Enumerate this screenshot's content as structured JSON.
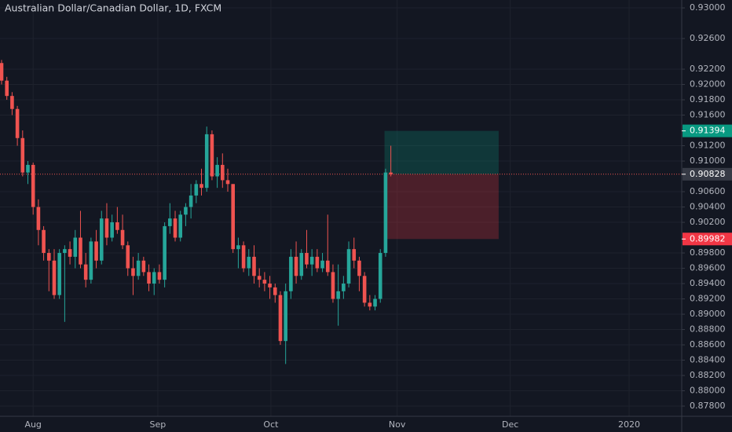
{
  "chart_data": {
    "type": "candlestick",
    "title": "Australian Dollar/Canadian Dollar, 1D, FXCM",
    "x": [
      0,
      1,
      2,
      3,
      4,
      5,
      6,
      7,
      8,
      9,
      10,
      11,
      12,
      13,
      14,
      15,
      16,
      17,
      18,
      19,
      20,
      21,
      22,
      23,
      24,
      25,
      26,
      27,
      28,
      29,
      30,
      31,
      32,
      33,
      34,
      35,
      36,
      37,
      38,
      39,
      40,
      41,
      42,
      43,
      44,
      45,
      46,
      47,
      48,
      49,
      50,
      51,
      52,
      53,
      54,
      55,
      56,
      57,
      58,
      59,
      60,
      61,
      62,
      63,
      64,
      65,
      66,
      67,
      68,
      69,
      70,
      71,
      72,
      73,
      74
    ],
    "open": [
      0.9228,
      0.9205,
      0.9185,
      0.9168,
      0.913,
      0.9085,
      0.9095,
      0.904,
      0.901,
      0.898,
      0.897,
      0.8925,
      0.898,
      0.8985,
      0.8975,
      0.9,
      0.8965,
      0.8945,
      0.8995,
      0.897,
      0.9025,
      0.9,
      0.902,
      0.901,
      0.899,
      0.896,
      0.895,
      0.897,
      0.8955,
      0.894,
      0.8955,
      0.8945,
      0.9015,
      0.9025,
      0.9,
      0.903,
      0.904,
      0.9055,
      0.907,
      0.9065,
      0.9135,
      0.908,
      0.9095,
      0.9075,
      0.907,
      0.8985,
      0.899,
      0.896,
      0.8975,
      0.895,
      0.8945,
      0.894,
      0.8935,
      0.8925,
      0.8865,
      0.893,
      0.8975,
      0.895,
      0.898,
      0.8965,
      0.8975,
      0.896,
      0.897,
      0.8955,
      0.892,
      0.893,
      0.894,
      0.8985,
      0.897,
      0.895,
      0.8915,
      0.891,
      0.892,
      0.898,
      0.9085
    ],
    "high": [
      0.9232,
      0.921,
      0.919,
      0.9172,
      0.914,
      0.91,
      0.9098,
      0.905,
      0.9015,
      0.8985,
      0.8985,
      0.8985,
      0.899,
      0.8995,
      0.901,
      0.9035,
      0.898,
      0.9,
      0.901,
      0.9035,
      0.9045,
      0.903,
      0.904,
      0.903,
      0.8995,
      0.8975,
      0.898,
      0.8975,
      0.8965,
      0.896,
      0.8965,
      0.902,
      0.9045,
      0.9035,
      0.9035,
      0.9045,
      0.907,
      0.9075,
      0.909,
      0.9145,
      0.914,
      0.9105,
      0.911,
      0.909,
      0.907,
      0.9,
      0.8995,
      0.8985,
      0.899,
      0.896,
      0.8955,
      0.895,
      0.894,
      0.893,
      0.894,
      0.8985,
      0.8995,
      0.8985,
      0.901,
      0.8985,
      0.8985,
      0.898,
      0.903,
      0.8965,
      0.8965,
      0.895,
      0.8995,
      0.9,
      0.8975,
      0.8955,
      0.8925,
      0.8925,
      0.8985,
      0.909,
      0.912
    ],
    "low": [
      0.92,
      0.918,
      0.916,
      0.912,
      0.908,
      0.907,
      0.903,
      0.899,
      0.897,
      0.893,
      0.892,
      0.892,
      0.889,
      0.8965,
      0.896,
      0.896,
      0.8935,
      0.894,
      0.896,
      0.8965,
      0.899,
      0.8995,
      0.9005,
      0.8985,
      0.895,
      0.8925,
      0.8945,
      0.895,
      0.893,
      0.8925,
      0.894,
      0.8935,
      0.9005,
      0.8995,
      0.8995,
      0.9015,
      0.9025,
      0.9045,
      0.9055,
      0.906,
      0.9075,
      0.9065,
      0.9065,
      0.906,
      0.898,
      0.896,
      0.8955,
      0.895,
      0.894,
      0.8935,
      0.893,
      0.892,
      0.8915,
      0.886,
      0.8835,
      0.892,
      0.894,
      0.8945,
      0.896,
      0.895,
      0.8955,
      0.8955,
      0.895,
      0.8915,
      0.8885,
      0.892,
      0.8935,
      0.896,
      0.893,
      0.891,
      0.8905,
      0.8905,
      0.8915,
      0.8975,
      0.908
    ],
    "close": [
      0.9205,
      0.9185,
      0.9168,
      0.913,
      0.9085,
      0.9095,
      0.904,
      0.901,
      0.898,
      0.897,
      0.8925,
      0.898,
      0.8985,
      0.8975,
      0.9,
      0.8965,
      0.8945,
      0.8995,
      0.897,
      0.9025,
      0.9,
      0.902,
      0.901,
      0.899,
      0.896,
      0.895,
      0.897,
      0.8955,
      0.894,
      0.8955,
      0.8945,
      0.9015,
      0.9025,
      0.9,
      0.903,
      0.904,
      0.9055,
      0.907,
      0.9065,
      0.9135,
      0.908,
      0.9095,
      0.9075,
      0.907,
      0.8985,
      0.899,
      0.896,
      0.8975,
      0.895,
      0.8945,
      0.894,
      0.8935,
      0.8925,
      0.8865,
      0.893,
      0.8975,
      0.895,
      0.898,
      0.8965,
      0.8975,
      0.896,
      0.897,
      0.8955,
      0.892,
      0.893,
      0.894,
      0.8985,
      0.897,
      0.895,
      0.8915,
      0.891,
      0.892,
      0.898,
      0.9085,
      0.90828
    ],
    "up_color": "#26a69a",
    "down_color": "#ef5350",
    "xlim": [
      -0.3,
      129.3
    ],
    "xticks": [
      {
        "value": 6,
        "label": "Aug"
      },
      {
        "value": 29.7,
        "label": "Sep"
      },
      {
        "value": 51.2,
        "label": "Oct"
      },
      {
        "value": 75.2,
        "label": "Nov"
      },
      {
        "value": 96.7,
        "label": "Dec"
      },
      {
        "value": 119.3,
        "label": "2020"
      }
    ],
    "ylim": [
      0.87667,
      0.93103
    ],
    "yticks": [
      {
        "value": 0.93,
        "label": "0.93000"
      },
      {
        "value": 0.926,
        "label": "0.92600"
      },
      {
        "value": 0.922,
        "label": "0.92200"
      },
      {
        "value": 0.92,
        "label": "0.92000"
      },
      {
        "value": 0.918,
        "label": "0.91800"
      },
      {
        "value": 0.916,
        "label": "0.91600"
      },
      {
        "value": 0.912,
        "label": "0.91200"
      },
      {
        "value": 0.91,
        "label": "0.91000"
      },
      {
        "value": 0.906,
        "label": "0.90600"
      },
      {
        "value": 0.904,
        "label": "0.90400"
      },
      {
        "value": 0.902,
        "label": "0.90200"
      },
      {
        "value": 0.898,
        "label": "0.89800"
      },
      {
        "value": 0.896,
        "label": "0.89600"
      },
      {
        "value": 0.894,
        "label": "0.89400"
      },
      {
        "value": 0.892,
        "label": "0.89200"
      },
      {
        "value": 0.89,
        "label": "0.89000"
      },
      {
        "value": 0.888,
        "label": "0.88800"
      },
      {
        "value": 0.886,
        "label": "0.88600"
      },
      {
        "value": 0.884,
        "label": "0.88400"
      },
      {
        "value": 0.882,
        "label": "0.88200"
      },
      {
        "value": 0.88,
        "label": "0.88000"
      },
      {
        "value": 0.878,
        "label": "0.87800"
      }
    ],
    "grid": true,
    "last_price": 0.90828,
    "position": {
      "entry": 0.90828,
      "target": 0.91394,
      "stop": 0.89982,
      "x_start": 72.8,
      "x_end": 94.5,
      "target_color": "#089981",
      "stop_color": "#f23645"
    }
  }
}
